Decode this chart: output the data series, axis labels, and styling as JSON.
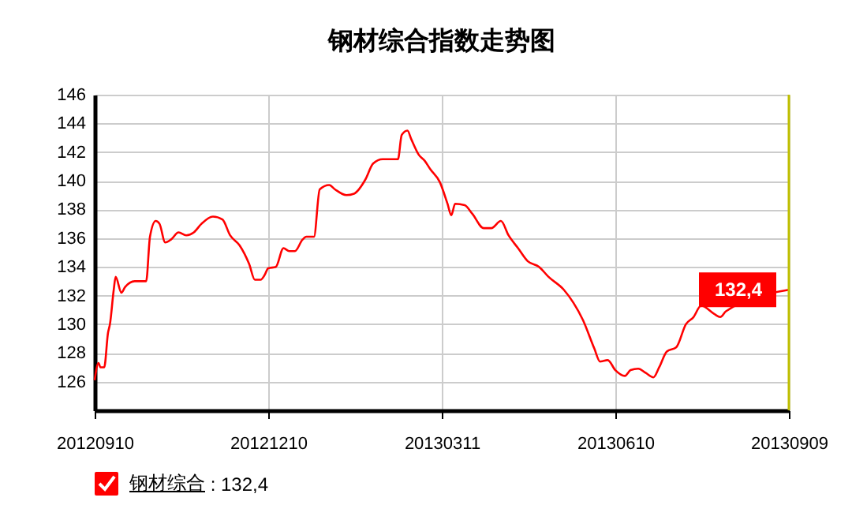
{
  "chart_data": {
    "type": "line",
    "title": "钢材综合指数走势图",
    "x": [
      "2012-09-10",
      "2012-09-12",
      "2012-09-13",
      "2012-09-15",
      "2012-09-17",
      "2012-09-18",
      "2012-09-20",
      "2012-09-21",
      "2012-09-24",
      "2012-09-26",
      "2012-10-01",
      "2012-10-07",
      "2012-10-09",
      "2012-10-12",
      "2012-10-14",
      "2012-10-17",
      "2012-10-20",
      "2012-10-24",
      "2012-10-28",
      "2012-11-01",
      "2012-11-05",
      "2012-11-11",
      "2012-11-16",
      "2012-11-20",
      "2012-11-25",
      "2012-11-30",
      "2012-12-03",
      "2012-12-06",
      "2012-12-08",
      "2012-12-10",
      "2012-12-14",
      "2012-12-18",
      "2012-12-21",
      "2012-12-24",
      "2012-12-28",
      "2012-12-30",
      "2013-01-03",
      "2013-01-06",
      "2013-01-11",
      "2013-01-14",
      "2013-01-20",
      "2013-01-24",
      "2013-01-30",
      "2013-02-03",
      "2013-02-08",
      "2013-02-16",
      "2013-02-18",
      "2013-02-21",
      "2013-02-23",
      "2013-02-27",
      "2013-03-02",
      "2013-03-05",
      "2013-03-10",
      "2013-03-14",
      "2013-03-16",
      "2013-03-18",
      "2013-03-23",
      "2013-03-27",
      "2013-04-02",
      "2013-04-06",
      "2013-04-11",
      "2013-04-15",
      "2013-04-20",
      "2013-04-25",
      "2013-05-01",
      "2013-05-06",
      "2013-05-14",
      "2013-05-19",
      "2013-05-24",
      "2013-05-30",
      "2013-06-02",
      "2013-06-06",
      "2013-06-10",
      "2013-06-15",
      "2013-06-18",
      "2013-06-22",
      "2013-06-26",
      "2013-06-30",
      "2013-07-03",
      "2013-07-07",
      "2013-07-12",
      "2013-07-17",
      "2013-07-21",
      "2013-07-25",
      "2013-08-01",
      "2013-08-04",
      "2013-08-07",
      "2013-09-09"
    ],
    "series": [
      {
        "name": "钢材综合",
        "color": "#ff0000",
        "values": [
          126.1,
          127.3,
          127.0,
          127.0,
          129.4,
          130.0,
          132.4,
          133.3,
          132.2,
          132.6,
          133.0,
          133.0,
          136.1,
          137.2,
          137.0,
          135.7,
          135.9,
          136.4,
          136.2,
          136.4,
          137.0,
          137.5,
          137.3,
          136.2,
          135.5,
          134.2,
          133.1,
          133.1,
          133.4,
          133.9,
          134.0,
          135.3,
          135.1,
          135.1,
          135.9,
          136.1,
          136.1,
          139.4,
          139.7,
          139.4,
          139.0,
          139.1,
          140.1,
          141.2,
          141.5,
          141.5,
          143.2,
          143.5,
          142.9,
          141.8,
          141.4,
          140.8,
          139.9,
          138.4,
          137.6,
          138.4,
          138.3,
          137.7,
          136.7,
          136.7,
          137.2,
          136.2,
          135.3,
          134.4,
          134.0,
          133.3,
          132.4,
          131.5,
          130.3,
          128.3,
          127.4,
          127.5,
          126.8,
          126.4,
          126.8,
          126.9,
          126.6,
          126.3,
          127.0,
          128.1,
          128.4,
          130.0,
          130.5,
          131.3,
          130.7,
          130.5,
          130.9,
          132.4
        ]
      }
    ],
    "xlim": [
      "2012-09-10",
      "2013-09-09"
    ],
    "xticks": [
      {
        "value": "2012-09-10",
        "label": "20120910"
      },
      {
        "value": "2012-12-10",
        "label": "20121210"
      },
      {
        "value": "2013-03-11",
        "label": "20130311"
      },
      {
        "value": "2013-06-10",
        "label": "20130610"
      },
      {
        "value": "2013-09-09",
        "label": "20130909"
      }
    ],
    "ylim": [
      124,
      146
    ],
    "yticks": [
      126,
      128,
      130,
      132,
      134,
      136,
      138,
      140,
      142,
      144,
      146
    ],
    "ref_lines": [
      {
        "axis": "x",
        "value": "2013-09-09",
        "color": "#bfbf00"
      }
    ],
    "annotations": [
      {
        "text": "132,4",
        "x": "2013-09-09",
        "y": 132.4
      },
      ": 132,4"
    ],
    "grid": true,
    "legend": "bottom left"
  }
}
